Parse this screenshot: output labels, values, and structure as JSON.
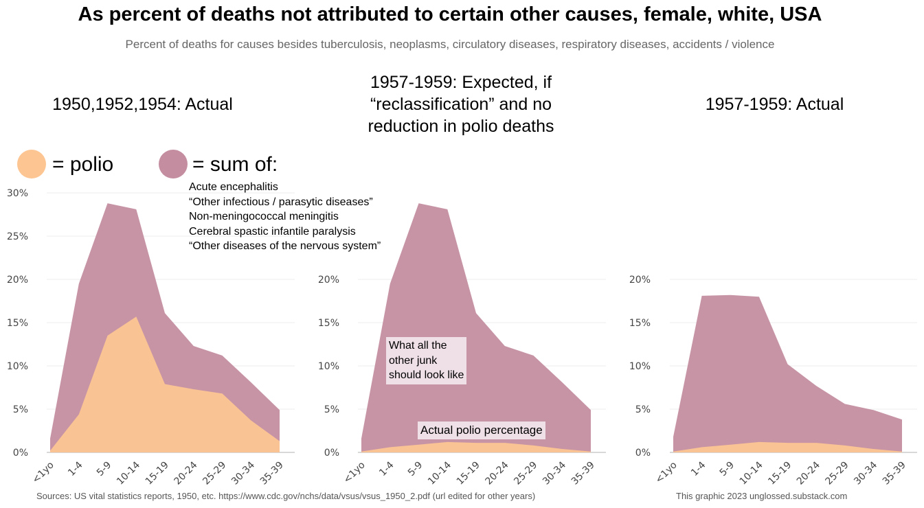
{
  "title": "As percent of deaths not attributed to certain other causes, female, white, USA",
  "subtitle": "Percent of deaths for causes besides tuberculosis, neoplasms, circulatory diseases, respiratory diseases, accidents / violence",
  "legend": {
    "polio_label": "= polio",
    "sum_label": "= sum of:",
    "polio_color": "#fdc592",
    "sum_color": "#c48ea0",
    "causes": [
      "Acute encephalitis",
      "“Other infectious / parasytic diseases”",
      "Non-meningococcal meningitis",
      "Cerebral spastic infantile paralysis",
      "“Other diseases of the nervous system”"
    ]
  },
  "annotations": {
    "junk": [
      "What all the",
      "other junk",
      "should look like"
    ],
    "polio": "Actual polio percentage"
  },
  "footer": {
    "sources": "Sources: US vital statistics reports, 1950, etc. https://www.cdc.gov/nchs/data/vsus/vsus_1950_2.pdf (url edited for other years)",
    "credit": "This graphic 2023 unglossed.substack.com"
  },
  "chart_data": [
    {
      "type": "area",
      "title": "1950,1952,1954: Actual",
      "categories": [
        "<1yo",
        "1-4",
        "5-9",
        "10-14",
        "15-19",
        "20-24",
        "25-29",
        "30-34",
        "35-39"
      ],
      "y_ticks": [
        "0%",
        "5%",
        "10%",
        "15%",
        "20%",
        "25%",
        "30%"
      ],
      "ylim": [
        0,
        30
      ],
      "grid": true,
      "series": [
        {
          "name": "sum of",
          "color": "#c48ea0",
          "values": [
            1.6,
            19.5,
            28.8,
            28.1,
            16.1,
            12.3,
            11.2,
            8.1,
            4.9
          ]
        },
        {
          "name": "polio",
          "color": "#fdc592",
          "values": [
            0.2,
            4.4,
            13.5,
            15.7,
            7.9,
            7.3,
            6.8,
            3.7,
            1.3
          ]
        }
      ]
    },
    {
      "type": "area",
      "title_lines": [
        "1957-1959: Expected, if",
        "“reclassification” and no",
        "reduction in polio deaths"
      ],
      "categories": [
        "<1yo",
        "1-4",
        "5-9",
        "10-14",
        "15-19",
        "20-24",
        "25-29",
        "30-34",
        "35-39"
      ],
      "y_ticks": [
        "0%",
        "5%",
        "10%",
        "15%",
        "20%"
      ],
      "ylim": [
        0,
        30
      ],
      "grid": true,
      "series": [
        {
          "name": "sum of",
          "color": "#c48ea0",
          "values": [
            1.6,
            19.5,
            28.8,
            28.1,
            16.1,
            12.3,
            11.2,
            8.1,
            4.9
          ]
        },
        {
          "name": "polio",
          "color": "#fdc592",
          "values": [
            0.1,
            0.6,
            0.9,
            1.2,
            1.1,
            1.1,
            0.8,
            0.4,
            0.1
          ]
        }
      ]
    },
    {
      "type": "area",
      "title": "1957-1959: Actual",
      "categories": [
        "<1yo",
        "1-4",
        "5-9",
        "10-14",
        "15-19",
        "20-24",
        "25-29",
        "30-34",
        "35-39"
      ],
      "y_ticks": [
        "0%",
        "5%",
        "10%",
        "15%",
        "20%"
      ],
      "ylim": [
        0,
        30
      ],
      "grid": true,
      "series": [
        {
          "name": "sum of",
          "color": "#c48ea0",
          "values": [
            1.8,
            18.1,
            18.2,
            18.0,
            10.2,
            7.7,
            5.6,
            4.9,
            3.8
          ]
        },
        {
          "name": "polio",
          "color": "#fdc592",
          "values": [
            0.1,
            0.6,
            0.9,
            1.2,
            1.1,
            1.1,
            0.8,
            0.4,
            0.1
          ]
        }
      ]
    }
  ]
}
